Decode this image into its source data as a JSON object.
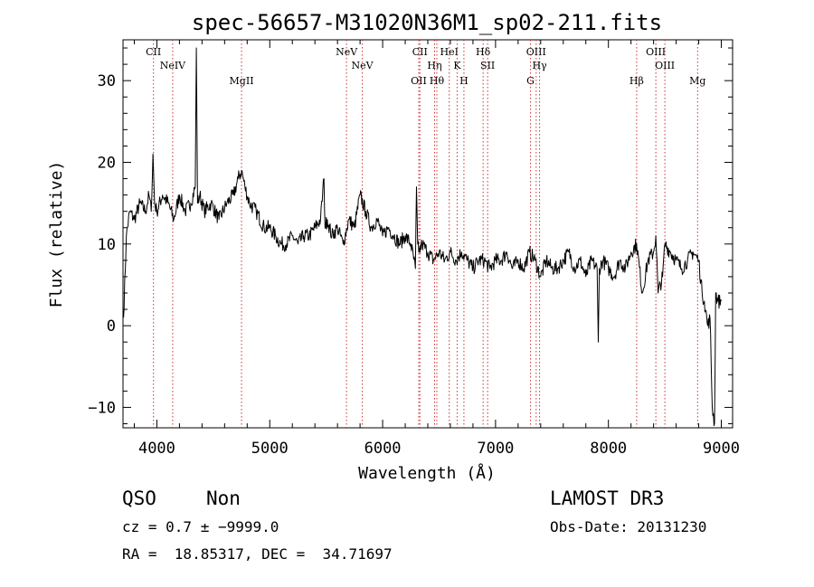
{
  "chart_data": {
    "type": "line",
    "title": "spec-56657-M31020N36M1_sp02-211.fits",
    "xlabel": "Wavelength (Å)",
    "ylabel": "Flux (relative)",
    "xlim": [
      3700,
      9100
    ],
    "ylim": [
      -12.5,
      35
    ],
    "xticks": [
      4000,
      5000,
      6000,
      7000,
      8000,
      9000
    ],
    "yticks": [
      -10,
      0,
      10,
      20,
      30
    ],
    "xtick_labels": [
      "4000",
      "5000",
      "6000",
      "7000",
      "8000",
      "9000"
    ],
    "ytick_labels": [
      "−10",
      "0",
      "10",
      "20",
      "30"
    ],
    "series": [
      {
        "name": "flux",
        "x": [
          3705,
          3730,
          3760,
          3800,
          3850,
          3900,
          3930,
          3950,
          3965,
          3980,
          4000,
          4050,
          4100,
          4150,
          4200,
          4250,
          4300,
          4340,
          4350,
          4360,
          4380,
          4420,
          4480,
          4550,
          4620,
          4680,
          4720,
          4750,
          4780,
          4820,
          4880,
          4950,
          5000,
          5050,
          5100,
          5150,
          5200,
          5250,
          5300,
          5350,
          5400,
          5450,
          5480,
          5490,
          5510,
          5550,
          5600,
          5650,
          5700,
          5750,
          5800,
          5850,
          5900,
          5950,
          6000,
          6050,
          6100,
          6150,
          6200,
          6250,
          6290,
          6300,
          6310,
          6320,
          6350,
          6400,
          6450,
          6500,
          6550,
          6600,
          6650,
          6700,
          6750,
          6800,
          6850,
          6900,
          6950,
          7000,
          7050,
          7100,
          7150,
          7200,
          7250,
          7300,
          7350,
          7400,
          7450,
          7500,
          7550,
          7600,
          7650,
          7700,
          7750,
          7800,
          7850,
          7900,
          7910,
          7920,
          7950,
          8000,
          8050,
          8100,
          8150,
          8200,
          8250,
          8300,
          8350,
          8400,
          8420,
          8440,
          8480,
          8500,
          8550,
          8600,
          8650,
          8700,
          8750,
          8800,
          8830,
          8850,
          8880,
          8900,
          8920,
          8940,
          8950,
          8970,
          9000
        ],
        "values": [
          1,
          11,
          14,
          13,
          15,
          14,
          16,
          14,
          21,
          15,
          14,
          16,
          15,
          13,
          16,
          14,
          15,
          17,
          34,
          15,
          16,
          14,
          15,
          13,
          15,
          16,
          18,
          19,
          17,
          15,
          14,
          12,
          12,
          11,
          10,
          10,
          11,
          10,
          11,
          11,
          12,
          13,
          18,
          12,
          13,
          11,
          12,
          10,
          13,
          12,
          16,
          14,
          12,
          13,
          11,
          12,
          11,
          10,
          11,
          10,
          7,
          17,
          10,
          9,
          10,
          9,
          8,
          9,
          8,
          9,
          8,
          9,
          8,
          7,
          8,
          8,
          7,
          8,
          8,
          9,
          7,
          8,
          7,
          9,
          8,
          6,
          8,
          7,
          7,
          8,
          9,
          7,
          8,
          6,
          8,
          7,
          -2,
          7,
          8,
          7,
          6,
          8,
          7,
          9,
          10,
          4,
          8,
          9,
          11,
          4,
          6,
          10,
          9,
          8,
          7,
          8,
          9,
          8,
          4,
          3,
          0,
          1,
          -10,
          -12,
          4,
          3,
          3
        ]
      }
    ],
    "lines": [
      {
        "label": "CII",
        "x": 3970
      },
      {
        "label": "NeIV",
        "x": 4140
      },
      {
        "label": "MgII",
        "x": 4750
      },
      {
        "label": "NeV",
        "x": 5680
      },
      {
        "label": "NeV",
        "x": 5820
      },
      {
        "label": "OII",
        "x": 6320
      },
      {
        "label": "CII",
        "x": 6330
      },
      {
        "label": "Hη",
        "x": 6460
      },
      {
        "label": "Hθ",
        "x": 6480
      },
      {
        "label": "HeI",
        "x": 6590
      },
      {
        "label": "K",
        "x": 6660
      },
      {
        "label": "H",
        "x": 6720
      },
      {
        "label": "Hδ",
        "x": 6890
      },
      {
        "label": "SII",
        "x": 6930
      },
      {
        "label": "G",
        "x": 7310
      },
      {
        "label": "OIII",
        "x": 7360
      },
      {
        "label": "Hγ",
        "x": 7390
      },
      {
        "label": "Hβ",
        "x": 8250
      },
      {
        "label": "OIII",
        "x": 8420
      },
      {
        "label": "OIII",
        "x": 8500
      },
      {
        "label": "Mg",
        "x": 8790
      }
    ],
    "line_color": "#cc3333",
    "grid": false
  },
  "info": {
    "class": "QSO",
    "subclass": "Non",
    "release": "LAMOST DR3",
    "cz": "cz = 0.7 ± −9999.0",
    "obs_date": "Obs-Date: 20131230",
    "radec": "RA =  18.85317, DEC =  34.71697"
  }
}
